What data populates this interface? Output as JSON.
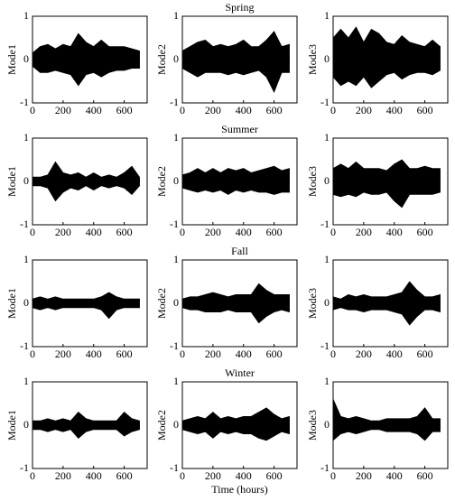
{
  "chart_data": [
    {
      "type": "area",
      "ylabel": "Mode1",
      "x": [
        0,
        50,
        100,
        150,
        200,
        250,
        300,
        350,
        400,
        450,
        500,
        550,
        600,
        650,
        700
      ],
      "series": [
        {
          "color": "#000000",
          "values": [
            0.15,
            0.3,
            0.35,
            0.25,
            0.35,
            0.3,
            0.6,
            0.4,
            0.3,
            0.45,
            0.3,
            0.3,
            0.3,
            0.25,
            0.2
          ]
        },
        {
          "color": "#000000",
          "values": [
            -0.15,
            -0.3,
            -0.3,
            -0.25,
            -0.3,
            -0.35,
            -0.6,
            -0.35,
            -0.3,
            -0.4,
            -0.3,
            -0.25,
            -0.25,
            -0.2,
            -0.2
          ]
        }
      ],
      "xlim": [
        0,
        750
      ],
      "ylim": [
        -1,
        1
      ],
      "xticks": [
        0,
        200,
        400,
        600
      ],
      "yticks": [
        -1,
        0,
        1
      ]
    },
    {
      "type": "area",
      "title": "Spring",
      "ylabel": "Mode2",
      "x": [
        0,
        50,
        100,
        150,
        200,
        250,
        300,
        350,
        400,
        450,
        500,
        550,
        600,
        650,
        700
      ],
      "series": [
        {
          "color": "#000000",
          "values": [
            0.2,
            0.3,
            0.4,
            0.45,
            0.3,
            0.35,
            0.3,
            0.35,
            0.45,
            0.3,
            0.3,
            0.45,
            0.65,
            0.3,
            0.35
          ]
        },
        {
          "color": "#000000",
          "values": [
            -0.2,
            -0.3,
            -0.4,
            -0.3,
            -0.3,
            -0.3,
            -0.35,
            -0.3,
            -0.35,
            -0.3,
            -0.25,
            -0.4,
            -0.75,
            -0.3,
            -0.3
          ]
        }
      ],
      "xlim": [
        0,
        750
      ],
      "ylim": [
        -1,
        1
      ],
      "xticks": [
        0,
        200,
        400,
        600
      ],
      "yticks": [
        -1,
        0,
        1
      ]
    },
    {
      "type": "area",
      "ylabel": "Mode3",
      "x": [
        0,
        50,
        100,
        150,
        200,
        250,
        300,
        350,
        400,
        450,
        500,
        550,
        600,
        650,
        700
      ],
      "series": [
        {
          "color": "#000000",
          "values": [
            0.5,
            0.7,
            0.5,
            0.75,
            0.4,
            0.7,
            0.6,
            0.4,
            0.35,
            0.55,
            0.4,
            0.35,
            0.3,
            0.45,
            0.3
          ]
        },
        {
          "color": "#000000",
          "values": [
            -0.4,
            -0.6,
            -0.5,
            -0.6,
            -0.4,
            -0.65,
            -0.5,
            -0.35,
            -0.3,
            -0.45,
            -0.35,
            -0.3,
            -0.3,
            -0.35,
            -0.25
          ]
        }
      ],
      "xlim": [
        0,
        750
      ],
      "ylim": [
        -1,
        1
      ],
      "xticks": [
        0,
        200,
        400,
        600
      ],
      "yticks": [
        -1,
        0,
        1
      ]
    },
    {
      "type": "area",
      "ylabel": "Mode1",
      "x": [
        0,
        50,
        100,
        150,
        200,
        250,
        300,
        350,
        400,
        450,
        500,
        550,
        600,
        650,
        700
      ],
      "series": [
        {
          "color": "#000000",
          "values": [
            0.1,
            0.1,
            0.15,
            0.45,
            0.2,
            0.15,
            0.2,
            0.1,
            0.2,
            0.1,
            0.15,
            0.1,
            0.2,
            0.35,
            0.1
          ]
        },
        {
          "color": "#000000",
          "values": [
            -0.1,
            -0.1,
            -0.15,
            -0.45,
            -0.25,
            -0.15,
            -0.2,
            -0.1,
            -0.2,
            -0.1,
            -0.15,
            -0.1,
            -0.15,
            -0.3,
            -0.1
          ]
        }
      ],
      "xlim": [
        0,
        750
      ],
      "ylim": [
        -1,
        1
      ],
      "xticks": [
        0,
        200,
        400,
        600
      ],
      "yticks": [
        -1,
        0,
        1
      ]
    },
    {
      "type": "area",
      "title": "Summer",
      "ylabel": "Mode2",
      "x": [
        0,
        50,
        100,
        150,
        200,
        250,
        300,
        350,
        400,
        450,
        500,
        550,
        600,
        650,
        700
      ],
      "series": [
        {
          "color": "#000000",
          "values": [
            0.15,
            0.2,
            0.3,
            0.2,
            0.3,
            0.2,
            0.3,
            0.25,
            0.3,
            0.2,
            0.25,
            0.3,
            0.35,
            0.25,
            0.3
          ]
        },
        {
          "color": "#000000",
          "values": [
            -0.15,
            -0.2,
            -0.25,
            -0.2,
            -0.25,
            -0.2,
            -0.3,
            -0.2,
            -0.25,
            -0.2,
            -0.25,
            -0.25,
            -0.3,
            -0.25,
            -0.25
          ]
        }
      ],
      "xlim": [
        0,
        750
      ],
      "ylim": [
        -1,
        1
      ],
      "xticks": [
        0,
        200,
        400,
        600
      ],
      "yticks": [
        -1,
        0,
        1
      ]
    },
    {
      "type": "area",
      "ylabel": "Mode3",
      "x": [
        0,
        50,
        100,
        150,
        200,
        250,
        300,
        350,
        400,
        450,
        500,
        550,
        600,
        650,
        700
      ],
      "series": [
        {
          "color": "#000000",
          "values": [
            0.3,
            0.4,
            0.3,
            0.45,
            0.3,
            0.3,
            0.3,
            0.25,
            0.4,
            0.5,
            0.3,
            0.3,
            0.35,
            0.3,
            0.3
          ]
        },
        {
          "color": "#000000",
          "values": [
            -0.3,
            -0.35,
            -0.3,
            -0.35,
            -0.25,
            -0.3,
            -0.3,
            -0.25,
            -0.45,
            -0.6,
            -0.3,
            -0.3,
            -0.3,
            -0.3,
            -0.25
          ]
        }
      ],
      "xlim": [
        0,
        750
      ],
      "ylim": [
        -1,
        1
      ],
      "xticks": [
        0,
        200,
        400,
        600
      ],
      "yticks": [
        -1,
        0,
        1
      ]
    },
    {
      "type": "area",
      "ylabel": "Mode1",
      "x": [
        0,
        50,
        100,
        150,
        200,
        250,
        300,
        350,
        400,
        450,
        500,
        550,
        600,
        650,
        700
      ],
      "series": [
        {
          "color": "#000000",
          "values": [
            0.1,
            0.15,
            0.1,
            0.15,
            0.1,
            0.1,
            0.1,
            0.1,
            0.1,
            0.15,
            0.25,
            0.15,
            0.1,
            0.1,
            0.1
          ]
        },
        {
          "color": "#000000",
          "values": [
            -0.1,
            -0.15,
            -0.1,
            -0.15,
            -0.1,
            -0.1,
            -0.1,
            -0.1,
            -0.1,
            -0.15,
            -0.35,
            -0.15,
            -0.1,
            -0.1,
            -0.1
          ]
        }
      ],
      "xlim": [
        0,
        750
      ],
      "ylim": [
        -1,
        1
      ],
      "xticks": [
        0,
        200,
        400,
        600
      ],
      "yticks": [
        -1,
        0,
        1
      ]
    },
    {
      "type": "area",
      "title": "Fall",
      "ylabel": "Mode2",
      "x": [
        0,
        50,
        100,
        150,
        200,
        250,
        300,
        350,
        400,
        450,
        500,
        550,
        600,
        650,
        700
      ],
      "series": [
        {
          "color": "#000000",
          "values": [
            0.1,
            0.15,
            0.15,
            0.2,
            0.25,
            0.2,
            0.15,
            0.2,
            0.2,
            0.2,
            0.45,
            0.3,
            0.2,
            0.2,
            0.2
          ]
        },
        {
          "color": "#000000",
          "values": [
            -0.1,
            -0.15,
            -0.15,
            -0.2,
            -0.2,
            -0.2,
            -0.15,
            -0.2,
            -0.2,
            -0.2,
            -0.45,
            -0.3,
            -0.2,
            -0.15,
            -0.2
          ]
        }
      ],
      "xlim": [
        0,
        750
      ],
      "ylim": [
        -1,
        1
      ],
      "xticks": [
        0,
        200,
        400,
        600
      ],
      "yticks": [
        -1,
        0,
        1
      ]
    },
    {
      "type": "area",
      "ylabel": "Mode3",
      "x": [
        0,
        50,
        100,
        150,
        200,
        250,
        300,
        350,
        400,
        450,
        500,
        550,
        600,
        650,
        700
      ],
      "series": [
        {
          "color": "#000000",
          "values": [
            0.15,
            0.1,
            0.2,
            0.15,
            0.2,
            0.15,
            0.15,
            0.15,
            0.2,
            0.25,
            0.5,
            0.3,
            0.15,
            0.15,
            0.2
          ]
        },
        {
          "color": "#000000",
          "values": [
            -0.15,
            -0.1,
            -0.15,
            -0.15,
            -0.2,
            -0.15,
            -0.15,
            -0.15,
            -0.2,
            -0.25,
            -0.5,
            -0.3,
            -0.15,
            -0.15,
            -0.2
          ]
        }
      ],
      "xlim": [
        0,
        750
      ],
      "ylim": [
        -1,
        1
      ],
      "xticks": [
        0,
        200,
        400,
        600
      ],
      "yticks": [
        -1,
        0,
        1
      ]
    },
    {
      "type": "area",
      "ylabel": "Mode1",
      "x": [
        0,
        50,
        100,
        150,
        200,
        250,
        300,
        350,
        400,
        450,
        500,
        550,
        600,
        650,
        700
      ],
      "series": [
        {
          "color": "#000000",
          "values": [
            0.1,
            0.1,
            0.15,
            0.1,
            0.15,
            0.1,
            0.3,
            0.15,
            0.1,
            0.1,
            0.1,
            0.1,
            0.3,
            0.15,
            0.1
          ]
        },
        {
          "color": "#000000",
          "values": [
            -0.1,
            -0.1,
            -0.15,
            -0.1,
            -0.15,
            -0.1,
            -0.3,
            -0.15,
            -0.1,
            -0.1,
            -0.1,
            -0.1,
            -0.25,
            -0.15,
            -0.1
          ]
        }
      ],
      "xlim": [
        0,
        750
      ],
      "ylim": [
        -1,
        1
      ],
      "xticks": [
        0,
        200,
        400,
        600
      ],
      "yticks": [
        -1,
        0,
        1
      ]
    },
    {
      "type": "area",
      "title": "Winter",
      "ylabel": "Mode2",
      "xlabel": "Time (hours)",
      "x": [
        0,
        50,
        100,
        150,
        200,
        250,
        300,
        350,
        400,
        450,
        500,
        550,
        600,
        650,
        700
      ],
      "series": [
        {
          "color": "#000000",
          "values": [
            0.1,
            0.15,
            0.2,
            0.15,
            0.3,
            0.15,
            0.2,
            0.15,
            0.2,
            0.2,
            0.3,
            0.4,
            0.25,
            0.15,
            0.2
          ]
        },
        {
          "color": "#000000",
          "values": [
            -0.1,
            -0.15,
            -0.2,
            -0.15,
            -0.3,
            -0.15,
            -0.2,
            -0.15,
            -0.2,
            -0.2,
            -0.3,
            -0.35,
            -0.25,
            -0.15,
            -0.2
          ]
        }
      ],
      "xlim": [
        0,
        750
      ],
      "ylim": [
        -1,
        1
      ],
      "xticks": [
        0,
        200,
        400,
        600
      ],
      "yticks": [
        -1,
        0,
        1
      ]
    },
    {
      "type": "area",
      "ylabel": "Mode3",
      "x": [
        0,
        50,
        100,
        150,
        200,
        250,
        300,
        350,
        400,
        450,
        500,
        550,
        600,
        650,
        700
      ],
      "series": [
        {
          "color": "#000000",
          "values": [
            0.6,
            0.2,
            0.15,
            0.2,
            0.15,
            0.1,
            0.1,
            0.15,
            0.15,
            0.15,
            0.15,
            0.2,
            0.4,
            0.15,
            0.15
          ]
        },
        {
          "color": "#000000",
          "values": [
            -0.35,
            -0.2,
            -0.15,
            -0.2,
            -0.15,
            -0.1,
            -0.1,
            -0.15,
            -0.15,
            -0.15,
            -0.15,
            -0.2,
            -0.35,
            -0.15,
            -0.15
          ]
        }
      ],
      "xlim": [
        0,
        750
      ],
      "ylim": [
        -1,
        1
      ],
      "xticks": [
        0,
        200,
        400,
        600
      ],
      "yticks": [
        -1,
        0,
        1
      ]
    }
  ]
}
